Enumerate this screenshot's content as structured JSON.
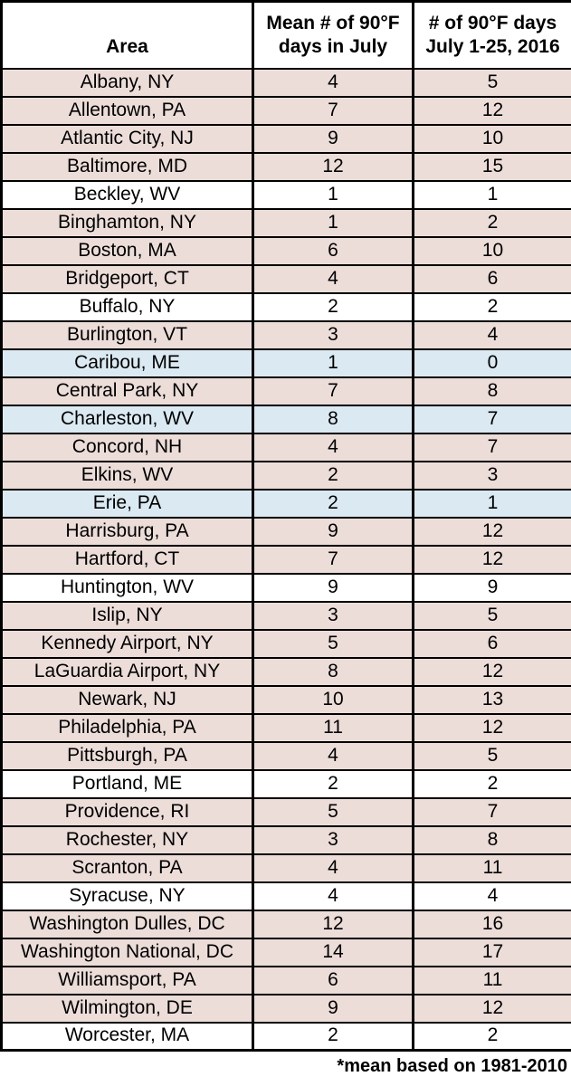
{
  "header": {
    "col_area": "Area",
    "col_mean": "Mean # of 90°F\ndays in July",
    "col_2016": "# of 90°F days\nJuly 1-25, 2016"
  },
  "footnote": "*mean based on 1981-2010",
  "colors": {
    "row_highlight": {
      "above": "#ECDDD9",
      "equal": "#FFFFFF",
      "below": "#DBE9F2"
    },
    "border": "#000000",
    "text": "#000000",
    "header_bg": "#FFFFFF"
  },
  "chart_data": {
    "type": "table",
    "columns": [
      "Area",
      "Mean # of 90°F days in July",
      "# of 90°F days July 1-25, 2016"
    ],
    "footnote": "*mean based on 1981-2010",
    "highlight_legend": {
      "above": "2016 count above mean (pink)",
      "equal": "2016 count equal to mean (white)",
      "below": "2016 count below mean (blue)"
    },
    "rows": [
      {
        "area": "Albany, NY",
        "mean_july": 4,
        "july_1_25_2016": 5,
        "highlight": "above"
      },
      {
        "area": "Allentown, PA",
        "mean_july": 7,
        "july_1_25_2016": 12,
        "highlight": "above"
      },
      {
        "area": "Atlantic City, NJ",
        "mean_july": 9,
        "july_1_25_2016": 10,
        "highlight": "above"
      },
      {
        "area": "Baltimore, MD",
        "mean_july": 12,
        "july_1_25_2016": 15,
        "highlight": "above"
      },
      {
        "area": "Beckley, WV",
        "mean_july": 1,
        "july_1_25_2016": 1,
        "highlight": "equal"
      },
      {
        "area": "Binghamton, NY",
        "mean_july": 1,
        "july_1_25_2016": 2,
        "highlight": "above"
      },
      {
        "area": "Boston, MA",
        "mean_july": 6,
        "july_1_25_2016": 10,
        "highlight": "above"
      },
      {
        "area": "Bridgeport, CT",
        "mean_july": 4,
        "july_1_25_2016": 6,
        "highlight": "above"
      },
      {
        "area": "Buffalo, NY",
        "mean_july": 2,
        "july_1_25_2016": 2,
        "highlight": "equal"
      },
      {
        "area": "Burlington, VT",
        "mean_july": 3,
        "july_1_25_2016": 4,
        "highlight": "above"
      },
      {
        "area": "Caribou, ME",
        "mean_july": 1,
        "july_1_25_2016": 0,
        "highlight": "below"
      },
      {
        "area": "Central Park, NY",
        "mean_july": 7,
        "july_1_25_2016": 8,
        "highlight": "above"
      },
      {
        "area": "Charleston, WV",
        "mean_july": 8,
        "july_1_25_2016": 7,
        "highlight": "below"
      },
      {
        "area": "Concord, NH",
        "mean_july": 4,
        "july_1_25_2016": 7,
        "highlight": "above"
      },
      {
        "area": "Elkins, WV",
        "mean_july": 2,
        "july_1_25_2016": 3,
        "highlight": "above"
      },
      {
        "area": "Erie, PA",
        "mean_july": 2,
        "july_1_25_2016": 1,
        "highlight": "below"
      },
      {
        "area": "Harrisburg, PA",
        "mean_july": 9,
        "july_1_25_2016": 12,
        "highlight": "above"
      },
      {
        "area": "Hartford, CT",
        "mean_july": 7,
        "july_1_25_2016": 12,
        "highlight": "above"
      },
      {
        "area": "Huntington, WV",
        "mean_july": 9,
        "july_1_25_2016": 9,
        "highlight": "equal"
      },
      {
        "area": "Islip, NY",
        "mean_july": 3,
        "july_1_25_2016": 5,
        "highlight": "above"
      },
      {
        "area": "Kennedy Airport, NY",
        "mean_july": 5,
        "july_1_25_2016": 6,
        "highlight": "above"
      },
      {
        "area": "LaGuardia Airport, NY",
        "mean_july": 8,
        "july_1_25_2016": 12,
        "highlight": "above"
      },
      {
        "area": "Newark, NJ",
        "mean_july": 10,
        "july_1_25_2016": 13,
        "highlight": "above"
      },
      {
        "area": "Philadelphia, PA",
        "mean_july": 11,
        "july_1_25_2016": 12,
        "highlight": "above"
      },
      {
        "area": "Pittsburgh, PA",
        "mean_july": 4,
        "july_1_25_2016": 5,
        "highlight": "above"
      },
      {
        "area": "Portland, ME",
        "mean_july": 2,
        "july_1_25_2016": 2,
        "highlight": "equal"
      },
      {
        "area": "Providence, RI",
        "mean_july": 5,
        "july_1_25_2016": 7,
        "highlight": "above"
      },
      {
        "area": "Rochester, NY",
        "mean_july": 3,
        "july_1_25_2016": 8,
        "highlight": "above"
      },
      {
        "area": "Scranton, PA",
        "mean_july": 4,
        "july_1_25_2016": 11,
        "highlight": "above"
      },
      {
        "area": "Syracuse, NY",
        "mean_july": 4,
        "july_1_25_2016": 4,
        "highlight": "equal"
      },
      {
        "area": "Washington Dulles, DC",
        "mean_july": 12,
        "july_1_25_2016": 16,
        "highlight": "above"
      },
      {
        "area": "Washington National, DC",
        "mean_july": 14,
        "july_1_25_2016": 17,
        "highlight": "above"
      },
      {
        "area": "Williamsport, PA",
        "mean_july": 6,
        "july_1_25_2016": 11,
        "highlight": "above"
      },
      {
        "area": "Wilmington, DE",
        "mean_july": 9,
        "july_1_25_2016": 12,
        "highlight": "above"
      },
      {
        "area": "Worcester, MA",
        "mean_july": 2,
        "july_1_25_2016": 2,
        "highlight": "equal"
      }
    ]
  }
}
